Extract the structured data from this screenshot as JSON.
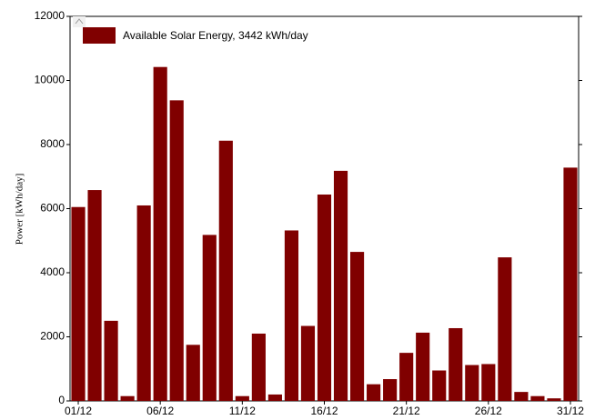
{
  "chart_data": {
    "type": "bar",
    "legend": "Available Solar Energy,  3442 kWh/day",
    "y_label": "Power  [kWh/day]",
    "color": "#800000",
    "categories": [
      "01/12",
      null,
      null,
      null,
      null,
      "06/12",
      null,
      null,
      null,
      null,
      "11/12",
      null,
      null,
      null,
      null,
      "16/12",
      null,
      null,
      null,
      null,
      "21/12",
      null,
      null,
      null,
      null,
      "26/12",
      null,
      null,
      null,
      null,
      "31/12"
    ],
    "values": [
      6050,
      6580,
      2500,
      150,
      6100,
      10420,
      9380,
      1750,
      5180,
      8120,
      150,
      2100,
      200,
      5320,
      2340,
      6440,
      7180,
      4650,
      520,
      680,
      1500,
      2130,
      950,
      2270,
      1120,
      1150,
      4480,
      280,
      150,
      80,
      7280
    ],
    "ylim": [
      0,
      12000
    ],
    "yticks": [
      0,
      2000,
      4000,
      6000,
      8000,
      10000,
      12000
    ],
    "legend_position": "upper left"
  }
}
